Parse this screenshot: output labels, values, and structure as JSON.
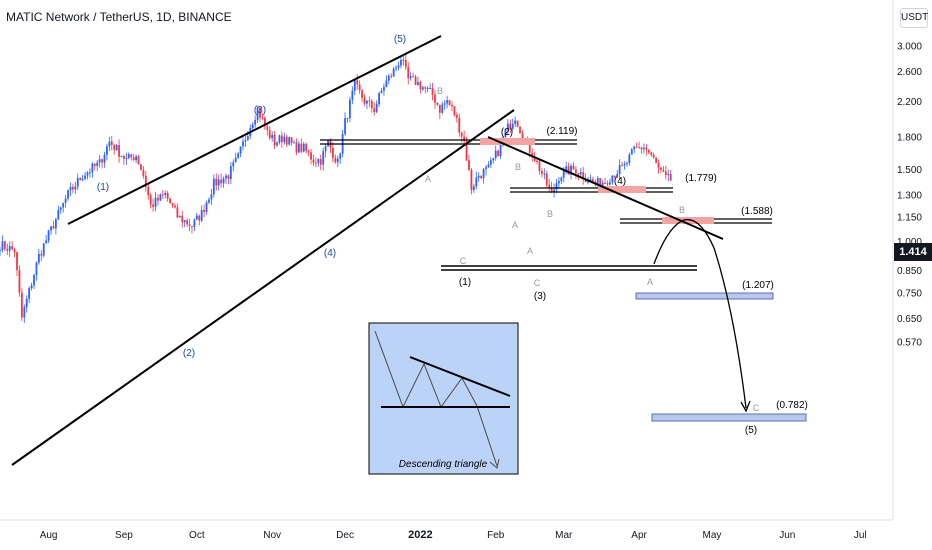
{
  "header": {
    "title": "MATIC Network / TetherUS, 1D, BINANCE",
    "currency": "USDT"
  },
  "last_price": "1.414",
  "chart_data": {
    "type": "line",
    "scale": "log",
    "ylim": [
      0.53,
      3.35
    ],
    "xlim": [
      "2021-07-12",
      "2022-07-25"
    ],
    "y_ticks": [
      "3.000",
      "2.600",
      "2.200",
      "1.800",
      "1.500",
      "1.300",
      "1.150",
      "1.000",
      "0.850",
      "0.750",
      "0.650",
      "0.570"
    ],
    "x_ticks": [
      "Aug",
      "Sep",
      "Oct",
      "Nov",
      "Dec",
      "2022",
      "Feb",
      "Mar",
      "Apr",
      "May",
      "Jun",
      "Jul"
    ],
    "series": [
      {
        "x": [
          "2021-07-12",
          "2021-07-18",
          "2021-07-21",
          "2021-07-28",
          "2021-08-03",
          "2021-08-09",
          "2021-08-15",
          "2021-08-22",
          "2021-08-26",
          "2021-09-02",
          "2021-09-06",
          "2021-09-09",
          "2021-09-12",
          "2021-09-18",
          "2021-09-23",
          "2021-09-29",
          "2021-10-03",
          "2021-10-08",
          "2021-10-14",
          "2021-10-18",
          "2021-10-22",
          "2021-10-26",
          "2021-10-30",
          "2021-11-02",
          "2021-11-06",
          "2021-11-10",
          "2021-11-14",
          "2021-11-18",
          "2021-11-21",
          "2021-11-24",
          "2021-11-28",
          "2021-12-01",
          "2021-12-05",
          "2021-12-09",
          "2021-12-13",
          "2021-12-17",
          "2021-12-21",
          "2021-12-24",
          "2021-12-27",
          "2021-12-30",
          "2022-01-03",
          "2022-01-06",
          "2022-01-09",
          "2022-01-12",
          "2022-01-15",
          "2022-01-19",
          "2022-01-22",
          "2022-01-25",
          "2022-01-29",
          "2022-02-02",
          "2022-02-05",
          "2022-02-09",
          "2022-02-13",
          "2022-02-17",
          "2022-02-21",
          "2022-02-24",
          "2022-02-27",
          "2022-03-02",
          "2022-03-06",
          "2022-03-10",
          "2022-03-14",
          "2022-03-18",
          "2022-03-22",
          "2022-03-26",
          "2022-03-30",
          "2022-04-03",
          "2022-04-06",
          "2022-04-09",
          "2022-04-12",
          "2022-04-15"
        ],
        "values": [
          0.98,
          0.95,
          0.65,
          0.92,
          1.1,
          1.3,
          1.45,
          1.55,
          1.75,
          1.58,
          1.62,
          1.45,
          1.22,
          1.3,
          1.15,
          1.09,
          1.17,
          1.38,
          1.45,
          1.6,
          1.86,
          2.1,
          1.85,
          1.74,
          1.8,
          1.7,
          1.68,
          1.58,
          1.58,
          1.74,
          1.55,
          1.95,
          2.4,
          2.2,
          2.1,
          2.4,
          2.6,
          2.8,
          2.48,
          2.45,
          2.35,
          2.28,
          2.1,
          2.2,
          2.05,
          1.75,
          1.35,
          1.45,
          1.5,
          1.66,
          1.85,
          2.02,
          1.75,
          1.6,
          1.42,
          1.3,
          1.44,
          1.48,
          1.5,
          1.43,
          1.38,
          1.4,
          1.47,
          1.52,
          1.67,
          1.7,
          1.62,
          1.5,
          1.42,
          1.41
        ]
      }
    ],
    "wave_labels": [
      "(1)",
      "(2)",
      "(3)",
      "(4)",
      "(5)",
      "(2)",
      "(4)",
      "(1)",
      "(3)",
      "(5)"
    ],
    "minor_labels": [
      "A",
      "B",
      "A",
      "B",
      "C",
      "A",
      "B",
      "C",
      "A",
      "B",
      "C"
    ],
    "level_labels": [
      "(2.119)",
      "(1.779)",
      "(1.588)",
      "(1.207)",
      "(0.782)"
    ],
    "inset_caption": "Descending triangle",
    "colors": {
      "up": "#2962ff",
      "down": "#f23645",
      "zone_red": "#f2a3a3",
      "zone_blue": "#b8c8ec",
      "inset_bg": "#bcd3f8"
    }
  }
}
